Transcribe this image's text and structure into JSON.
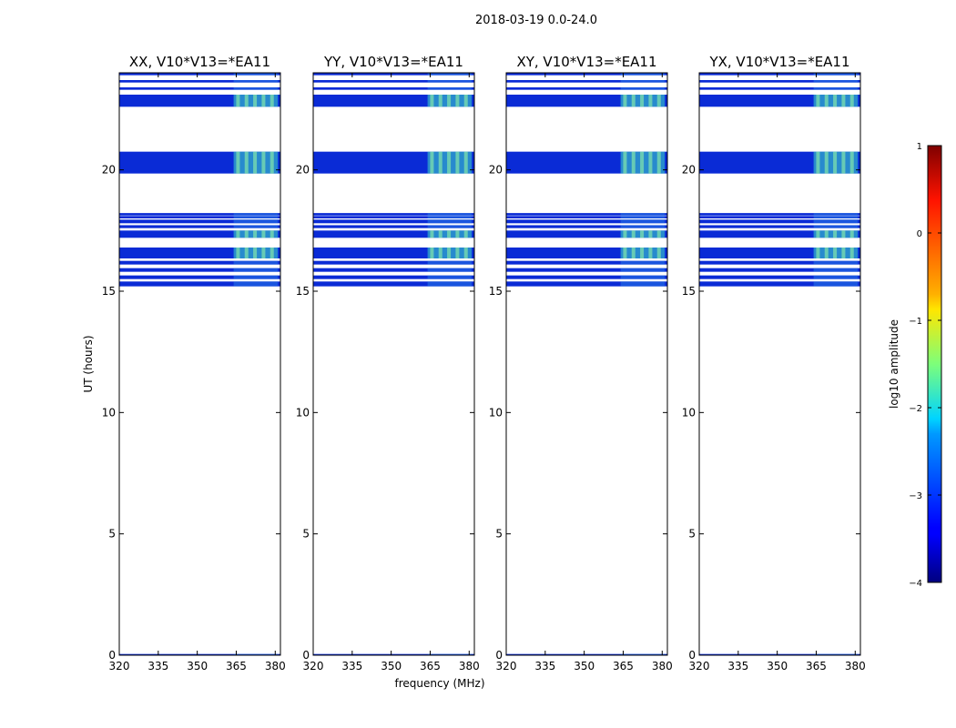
{
  "chart_data": {
    "type": "heatmap",
    "suptitle": "2018-03-19 0.0-24.0",
    "xlabel": "frequency (MHz)",
    "ylabel": "UT (hours)",
    "xlim": [
      320,
      382
    ],
    "ylim": [
      0,
      24
    ],
    "xticks": [
      320,
      335,
      350,
      365,
      380
    ],
    "yticks": [
      0,
      5,
      10,
      15,
      20
    ],
    "panels": [
      {
        "title": "XX, V10*V13=*EA11"
      },
      {
        "title": "YY, V10*V13=*EA11"
      },
      {
        "title": "XY, V10*V13=*EA11"
      },
      {
        "title": "YX, V10*V13=*EA11"
      }
    ],
    "data_bands_ut": [
      [
        0.0,
        0.05
      ],
      [
        15.2,
        15.4
      ],
      [
        15.5,
        15.65
      ],
      [
        15.8,
        15.95
      ],
      [
        16.1,
        16.25
      ],
      [
        16.35,
        16.8
      ],
      [
        17.2,
        17.5
      ],
      [
        17.6,
        17.72
      ],
      [
        17.8,
        17.95
      ],
      [
        18.0,
        18.1
      ],
      [
        18.12,
        18.22
      ],
      [
        19.85,
        20.75
      ],
      [
        22.6,
        23.1
      ],
      [
        23.3,
        23.4
      ],
      [
        23.6,
        23.7
      ],
      [
        23.9,
        24.0
      ]
    ],
    "rfi_frequency_range_mhz": [
      364,
      381
    ],
    "colorbar": {
      "label": "log10 amplitude",
      "ticks": [
        "−4",
        "−3",
        "−2",
        "−1",
        "0",
        "1"
      ],
      "range": [
        -4,
        1
      ],
      "colormap": "jet"
    }
  }
}
